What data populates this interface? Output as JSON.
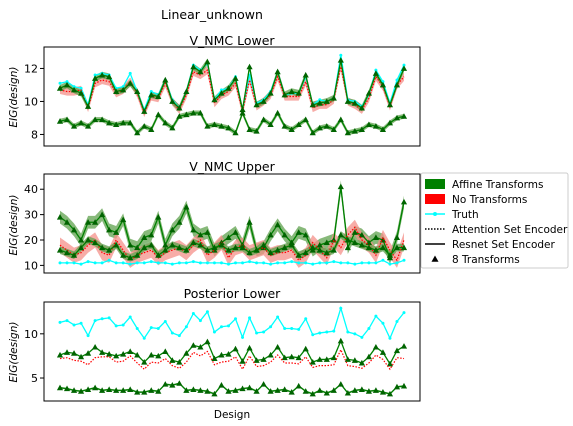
{
  "figure": {
    "suptitle": "Linear_unknown"
  },
  "colors": {
    "affine": "#008000",
    "affine_band": "#5fa24d",
    "no_transform": "#ff0000",
    "no_transform_band": "#f4908a",
    "truth": "#00ffff"
  },
  "legend": {
    "placement": "right of middle panel",
    "entries": [
      {
        "label": "Affine Transforms",
        "swatch": "patch",
        "color": "#008000"
      },
      {
        "label": "No Transforms",
        "swatch": "patch",
        "color": "#ff0000"
      },
      {
        "label": "Truth",
        "swatch": "line-marker",
        "color": "#00ffff"
      },
      {
        "label": "Attention Set Encoder",
        "swatch": "dotted-line",
        "color": "#000000"
      },
      {
        "label": "Resnet Set Encoder",
        "swatch": "solid-line",
        "color": "#000000"
      },
      {
        "label": "8 Transforms",
        "swatch": "triangle",
        "color": "#000000"
      }
    ]
  },
  "chart_data": [
    {
      "type": "line",
      "title": "V_NMC Lower",
      "xlabel": "",
      "ylabel": "EIG(design)",
      "ylim": [
        7.3,
        13.3
      ],
      "yticks": [
        8,
        10,
        12
      ],
      "xticks": [],
      "grid": false,
      "x": [
        1,
        2,
        3,
        4,
        5,
        6,
        7,
        8,
        9,
        10,
        11,
        12,
        13,
        14,
        15,
        16,
        17,
        18,
        19,
        20,
        21,
        22,
        23,
        24,
        25,
        26,
        27,
        28,
        29,
        30,
        31,
        32,
        33,
        34,
        35,
        36,
        37,
        38,
        39,
        40,
        41,
        42,
        43,
        44,
        45,
        46,
        47,
        48,
        49,
        50
      ],
      "series": [
        {
          "name": "Truth",
          "color": "#00ffff",
          "style": "line-marker",
          "values": [
            11.1,
            11.2,
            10.9,
            10.8,
            9.8,
            11.6,
            11.7,
            11.6,
            10.8,
            10.9,
            11.7,
            10.6,
            9.5,
            10.6,
            10.4,
            11.3,
            10.1,
            9.6,
            10.6,
            12.2,
            11.9,
            12.3,
            10.1,
            10.7,
            10.8,
            11.5,
            9.5,
            11.6,
            9.9,
            10.1,
            10.6,
            11.8,
            10.4,
            10.5,
            10.5,
            11.5,
            9.8,
            10.1,
            10.0,
            10.2,
            12.8,
            10.1,
            10.0,
            9.7,
            10.4,
            11.9,
            11.2,
            9.9,
            11.3,
            12.2
          ]
        },
        {
          "name": "No Transforms (Attention)",
          "color": "#ff0000",
          "style": "dotted",
          "values": [
            10.7,
            10.6,
            10.6,
            10.7,
            9.6,
            11.1,
            11.3,
            11.2,
            10.5,
            10.7,
            11.2,
            10.5,
            9.3,
            10.3,
            10.2,
            11.1,
            10.0,
            9.5,
            10.4,
            11.8,
            11.6,
            11.9,
            9.9,
            10.4,
            10.6,
            11.1,
            9.4,
            11.3,
            9.7,
            10.0,
            10.4,
            11.5,
            10.3,
            10.3,
            10.3,
            11.2,
            9.6,
            9.8,
            9.8,
            10.1,
            12.1,
            10.0,
            9.8,
            9.5,
            10.2,
            11.5,
            10.9,
            9.7,
            11.0,
            11.5
          ],
          "band": 0.25
        },
        {
          "name": "Affine Transforms (8, upper)",
          "color": "#008000",
          "style": "solid-triangle",
          "values": [
            10.8,
            11.0,
            10.7,
            10.5,
            9.7,
            11.4,
            11.6,
            11.5,
            10.6,
            10.7,
            11.1,
            10.6,
            9.4,
            10.4,
            10.3,
            11.3,
            10.0,
            9.6,
            10.6,
            12.1,
            11.8,
            12.4,
            10.1,
            10.5,
            10.8,
            11.4,
            9.5,
            12.1,
            9.8,
            10.0,
            10.5,
            11.8,
            10.4,
            10.6,
            10.5,
            11.6,
            9.8,
            9.9,
            10.0,
            10.2,
            12.5,
            10.0,
            9.9,
            9.6,
            10.5,
            11.7,
            11.0,
            9.8,
            11.0,
            12.0
          ],
          "band": 0.2
        },
        {
          "name": "Affine Transforms (8, lower)",
          "color": "#008000",
          "style": "solid-triangle",
          "values": [
            8.8,
            8.9,
            8.5,
            8.7,
            8.5,
            8.9,
            8.9,
            8.7,
            8.6,
            8.7,
            8.7,
            8.1,
            8.5,
            8.3,
            9.2,
            8.7,
            8.4,
            9.1,
            9.2,
            9.3,
            9.3,
            8.5,
            8.6,
            8.5,
            8.4,
            8.1,
            9.3,
            8.3,
            8.2,
            8.9,
            8.6,
            9.3,
            8.5,
            8.3,
            8.6,
            8.9,
            8.1,
            8.4,
            8.5,
            8.3,
            8.9,
            8.1,
            8.2,
            8.3,
            8.6,
            8.5,
            8.3,
            8.7,
            9.0,
            9.1
          ],
          "band": 0.15
        }
      ]
    },
    {
      "type": "line",
      "title": "V_NMC Upper",
      "xlabel": "",
      "ylabel": "EIG(design)",
      "ylim": [
        7,
        46
      ],
      "yticks": [
        10,
        20,
        30,
        40
      ],
      "xticks": [],
      "grid": false,
      "x": [
        1,
        2,
        3,
        4,
        5,
        6,
        7,
        8,
        9,
        10,
        11,
        12,
        13,
        14,
        15,
        16,
        17,
        18,
        19,
        20,
        21,
        22,
        23,
        24,
        25,
        26,
        27,
        28,
        29,
        30,
        31,
        32,
        33,
        34,
        35,
        36,
        37,
        38,
        39,
        40,
        41,
        42,
        43,
        44,
        45,
        46,
        47,
        48,
        49,
        50
      ],
      "series": [
        {
          "name": "Affine Transforms (8)",
          "color": "#008000",
          "style": "solid-triangle",
          "values": [
            29,
            27,
            24,
            20,
            27,
            27,
            30,
            24,
            23,
            28,
            18,
            17,
            21,
            22,
            29,
            18,
            24,
            27,
            33,
            24,
            22,
            23,
            16,
            19,
            21,
            23,
            18,
            27,
            16,
            17,
            22,
            26,
            22,
            19,
            23,
            22,
            16,
            18,
            19,
            20,
            41,
            17,
            23,
            22,
            19,
            21,
            20,
            13,
            21,
            35
          ],
          "band": 2.5
        },
        {
          "name": "No Transforms (Attention)",
          "color": "#ff0000",
          "style": "dotted",
          "values": [
            18,
            16,
            14,
            15,
            18,
            20,
            15,
            14,
            20,
            16,
            12,
            14,
            15,
            16,
            13,
            15,
            16,
            17,
            15,
            18,
            20,
            14,
            16,
            19,
            13,
            17,
            18,
            15,
            16,
            17,
            14,
            15,
            15,
            16,
            12,
            14,
            19,
            16,
            13,
            20,
            17,
            22,
            25,
            20,
            18,
            14,
            21,
            16,
            12,
            20
          ],
          "band": 3.0
        },
        {
          "name": "Affine Transforms (Resnet)",
          "color": "#008000",
          "style": "solid-triangle",
          "values": [
            16,
            15,
            14,
            17,
            20,
            19,
            17,
            16,
            18,
            14,
            13,
            14,
            17,
            18,
            14,
            16,
            18,
            17,
            16,
            19,
            18,
            16,
            17,
            18,
            16,
            17,
            17,
            15,
            16,
            18,
            15,
            16,
            17,
            18,
            14,
            15,
            17,
            16,
            15,
            16,
            22,
            20,
            19,
            18,
            17,
            16,
            17,
            14,
            17,
            17
          ],
          "band": 1.5
        },
        {
          "name": "Truth",
          "color": "#00ffff",
          "style": "line-marker",
          "values": [
            11,
            11,
            11,
            10.5,
            11.5,
            11,
            11,
            12,
            11,
            11,
            10.5,
            11,
            11,
            11.5,
            11,
            11,
            10.5,
            11,
            11,
            11.5,
            11,
            11,
            11,
            11,
            10.5,
            11,
            11,
            11.5,
            11,
            11,
            10.5,
            11,
            11,
            11.5,
            11,
            11,
            10.5,
            11,
            11,
            11.5,
            11,
            11,
            10.5,
            11,
            11,
            11,
            12,
            10.5,
            11,
            12
          ]
        }
      ]
    },
    {
      "type": "line",
      "title": "Posterior Lower",
      "xlabel": "Design",
      "ylabel": "EIG(design)",
      "ylim": [
        2.4,
        13.6
      ],
      "yticks": [
        5,
        10
      ],
      "xticks": [],
      "grid": false,
      "x": [
        1,
        2,
        3,
        4,
        5,
        6,
        7,
        8,
        9,
        10,
        11,
        12,
        13,
        14,
        15,
        16,
        17,
        18,
        19,
        20,
        21,
        22,
        23,
        24,
        25,
        26,
        27,
        28,
        29,
        30,
        31,
        32,
        33,
        34,
        35,
        36,
        37,
        38,
        39,
        40,
        41,
        42,
        43,
        44,
        45,
        46,
        47,
        48,
        49,
        50
      ],
      "series": [
        {
          "name": "Truth",
          "color": "#00ffff",
          "style": "line-marker",
          "values": [
            11.3,
            11.5,
            11.0,
            11.2,
            9.8,
            11.5,
            11.7,
            11.8,
            10.9,
            11.0,
            11.9,
            10.6,
            9.5,
            10.7,
            10.6,
            11.4,
            10.1,
            9.8,
            10.8,
            12.3,
            11.5,
            12.5,
            10.2,
            10.8,
            10.9,
            11.7,
            9.6,
            11.8,
            10.1,
            10.2,
            10.8,
            11.9,
            10.6,
            10.6,
            10.5,
            11.7,
            9.9,
            10.1,
            10.2,
            10.3,
            12.9,
            10.2,
            10.0,
            9.6,
            10.6,
            12.0,
            11.2,
            9.5,
            11.4,
            12.4
          ]
        },
        {
          "name": "Affine Transforms (8, upper)",
          "color": "#008000",
          "style": "solid-triangle",
          "values": [
            7.6,
            7.9,
            7.8,
            7.4,
            7.8,
            8.5,
            7.9,
            7.7,
            7.5,
            7.7,
            8.0,
            7.6,
            6.8,
            7.6,
            7.5,
            8.0,
            7.0,
            6.8,
            7.8,
            8.7,
            8.5,
            9.1,
            7.2,
            7.6,
            7.7,
            8.3,
            6.9,
            8.4,
            7.0,
            7.1,
            7.6,
            8.5,
            7.3,
            7.4,
            7.3,
            8.3,
            6.8,
            7.1,
            7.1,
            7.3,
            9.2,
            7.1,
            7.0,
            6.7,
            7.4,
            8.5,
            7.9,
            6.6,
            8.1,
            8.6
          ]
        },
        {
          "name": "No Transforms (Attention)",
          "color": "#ff0000",
          "style": "dotted",
          "values": [
            7.2,
            7.3,
            7.0,
            6.9,
            6.5,
            7.3,
            7.4,
            7.4,
            6.8,
            6.9,
            7.5,
            6.7,
            6.0,
            6.8,
            6.7,
            7.2,
            6.4,
            6.1,
            6.8,
            7.9,
            7.5,
            8.0,
            6.5,
            6.8,
            6.9,
            7.4,
            6.0,
            7.5,
            6.3,
            6.4,
            6.8,
            7.6,
            6.7,
            6.7,
            6.6,
            7.4,
            6.2,
            6.4,
            6.4,
            6.5,
            8.2,
            6.4,
            6.3,
            6.1,
            6.7,
            7.6,
            7.1,
            6.0,
            7.3,
            7.2
          ]
        },
        {
          "name": "Affine Transforms (8, lower)",
          "color": "#008000",
          "style": "solid-triangle",
          "values": [
            3.9,
            3.8,
            3.6,
            3.5,
            3.7,
            3.9,
            3.6,
            3.7,
            3.6,
            3.6,
            3.7,
            3.4,
            3.4,
            3.6,
            3.5,
            4.3,
            4.2,
            4.4,
            3.6,
            3.7,
            3.6,
            3.5,
            3.2,
            4.2,
            3.5,
            3.6,
            3.8,
            3.9,
            3.5,
            4.3,
            3.5,
            3.6,
            3.7,
            3.4,
            4.1,
            3.5,
            3.2,
            3.6,
            3.3,
            3.6,
            4.3,
            3.3,
            3.6,
            3.7,
            3.5,
            3.6,
            3.4,
            3.2,
            4.0,
            4.1
          ],
          "band": 0.1
        }
      ]
    }
  ]
}
